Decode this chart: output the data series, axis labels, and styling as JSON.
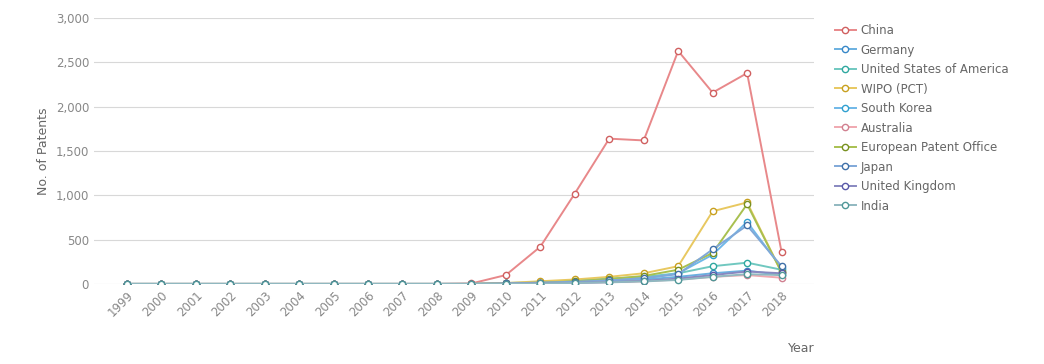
{
  "years": [
    1999,
    2000,
    2001,
    2002,
    2003,
    2004,
    2005,
    2006,
    2007,
    2008,
    2009,
    2010,
    2011,
    2012,
    2013,
    2014,
    2015,
    2016,
    2017,
    2018
  ],
  "series": {
    "China": [
      0,
      0,
      0,
      0,
      0,
      0,
      0,
      0,
      0,
      0,
      5,
      100,
      420,
      1020,
      1640,
      1620,
      2630,
      2160,
      2380,
      360
    ],
    "Germany": [
      0,
      0,
      0,
      0,
      0,
      0,
      0,
      0,
      0,
      0,
      0,
      5,
      10,
      20,
      30,
      50,
      80,
      120,
      150,
      100
    ],
    "United States of America": [
      0,
      0,
      0,
      0,
      0,
      0,
      0,
      0,
      0,
      0,
      0,
      10,
      20,
      40,
      60,
      80,
      120,
      200,
      240,
      160
    ],
    "WIPO (PCT)": [
      0,
      0,
      0,
      0,
      0,
      0,
      0,
      0,
      0,
      0,
      0,
      10,
      30,
      50,
      80,
      120,
      200,
      820,
      920,
      130
    ],
    "South Korea": [
      0,
      0,
      0,
      0,
      0,
      0,
      0,
      0,
      0,
      0,
      0,
      5,
      10,
      20,
      35,
      60,
      120,
      330,
      700,
      180
    ],
    "Australia": [
      0,
      0,
      0,
      0,
      0,
      0,
      0,
      0,
      0,
      0,
      0,
      5,
      10,
      15,
      20,
      30,
      50,
      80,
      100,
      70
    ],
    "European Patent Office": [
      0,
      0,
      0,
      0,
      0,
      0,
      0,
      0,
      0,
      0,
      0,
      5,
      15,
      30,
      55,
      90,
      160,
      350,
      900,
      130
    ],
    "Japan": [
      0,
      0,
      0,
      0,
      0,
      0,
      0,
      0,
      0,
      0,
      0,
      5,
      15,
      25,
      40,
      65,
      110,
      390,
      660,
      200
    ],
    "United Kingdom": [
      0,
      0,
      0,
      0,
      0,
      0,
      0,
      0,
      0,
      0,
      0,
      2,
      8,
      12,
      20,
      35,
      60,
      100,
      140,
      120
    ],
    "India": [
      0,
      0,
      0,
      0,
      0,
      0,
      0,
      0,
      0,
      0,
      0,
      2,
      5,
      10,
      18,
      28,
      45,
      80,
      110,
      100
    ]
  },
  "line_colors": {
    "China": "#e8888a",
    "Germany": "#6ab0e0",
    "United States of America": "#70c8c0",
    "WIPO (PCT)": "#e8c860",
    "South Korea": "#70b8e8",
    "Australia": "#f0a8b0",
    "European Patent Office": "#a8c050",
    "Japan": "#80a8d8",
    "United Kingdom": "#8888c0",
    "India": "#90b8c0"
  },
  "marker_edge_colors": {
    "China": "#d06060",
    "Germany": "#3888c8",
    "United States of America": "#30a8a0",
    "WIPO (PCT)": "#c8a020",
    "South Korea": "#30a0d0",
    "Australia": "#d08090",
    "European Patent Office": "#789020",
    "Japan": "#4070a8",
    "United Kingdom": "#5858a8",
    "India": "#509898"
  },
  "ylabel": "No. of Patents",
  "xlabel": "Year",
  "ylim": [
    0,
    3000
  ],
  "yticks": [
    0,
    500,
    1000,
    1500,
    2000,
    2500,
    3000
  ],
  "background_color": "#ffffff",
  "grid_color": "#d8d8d8",
  "tick_label_color": "#888888",
  "axis_label_color": "#666666"
}
